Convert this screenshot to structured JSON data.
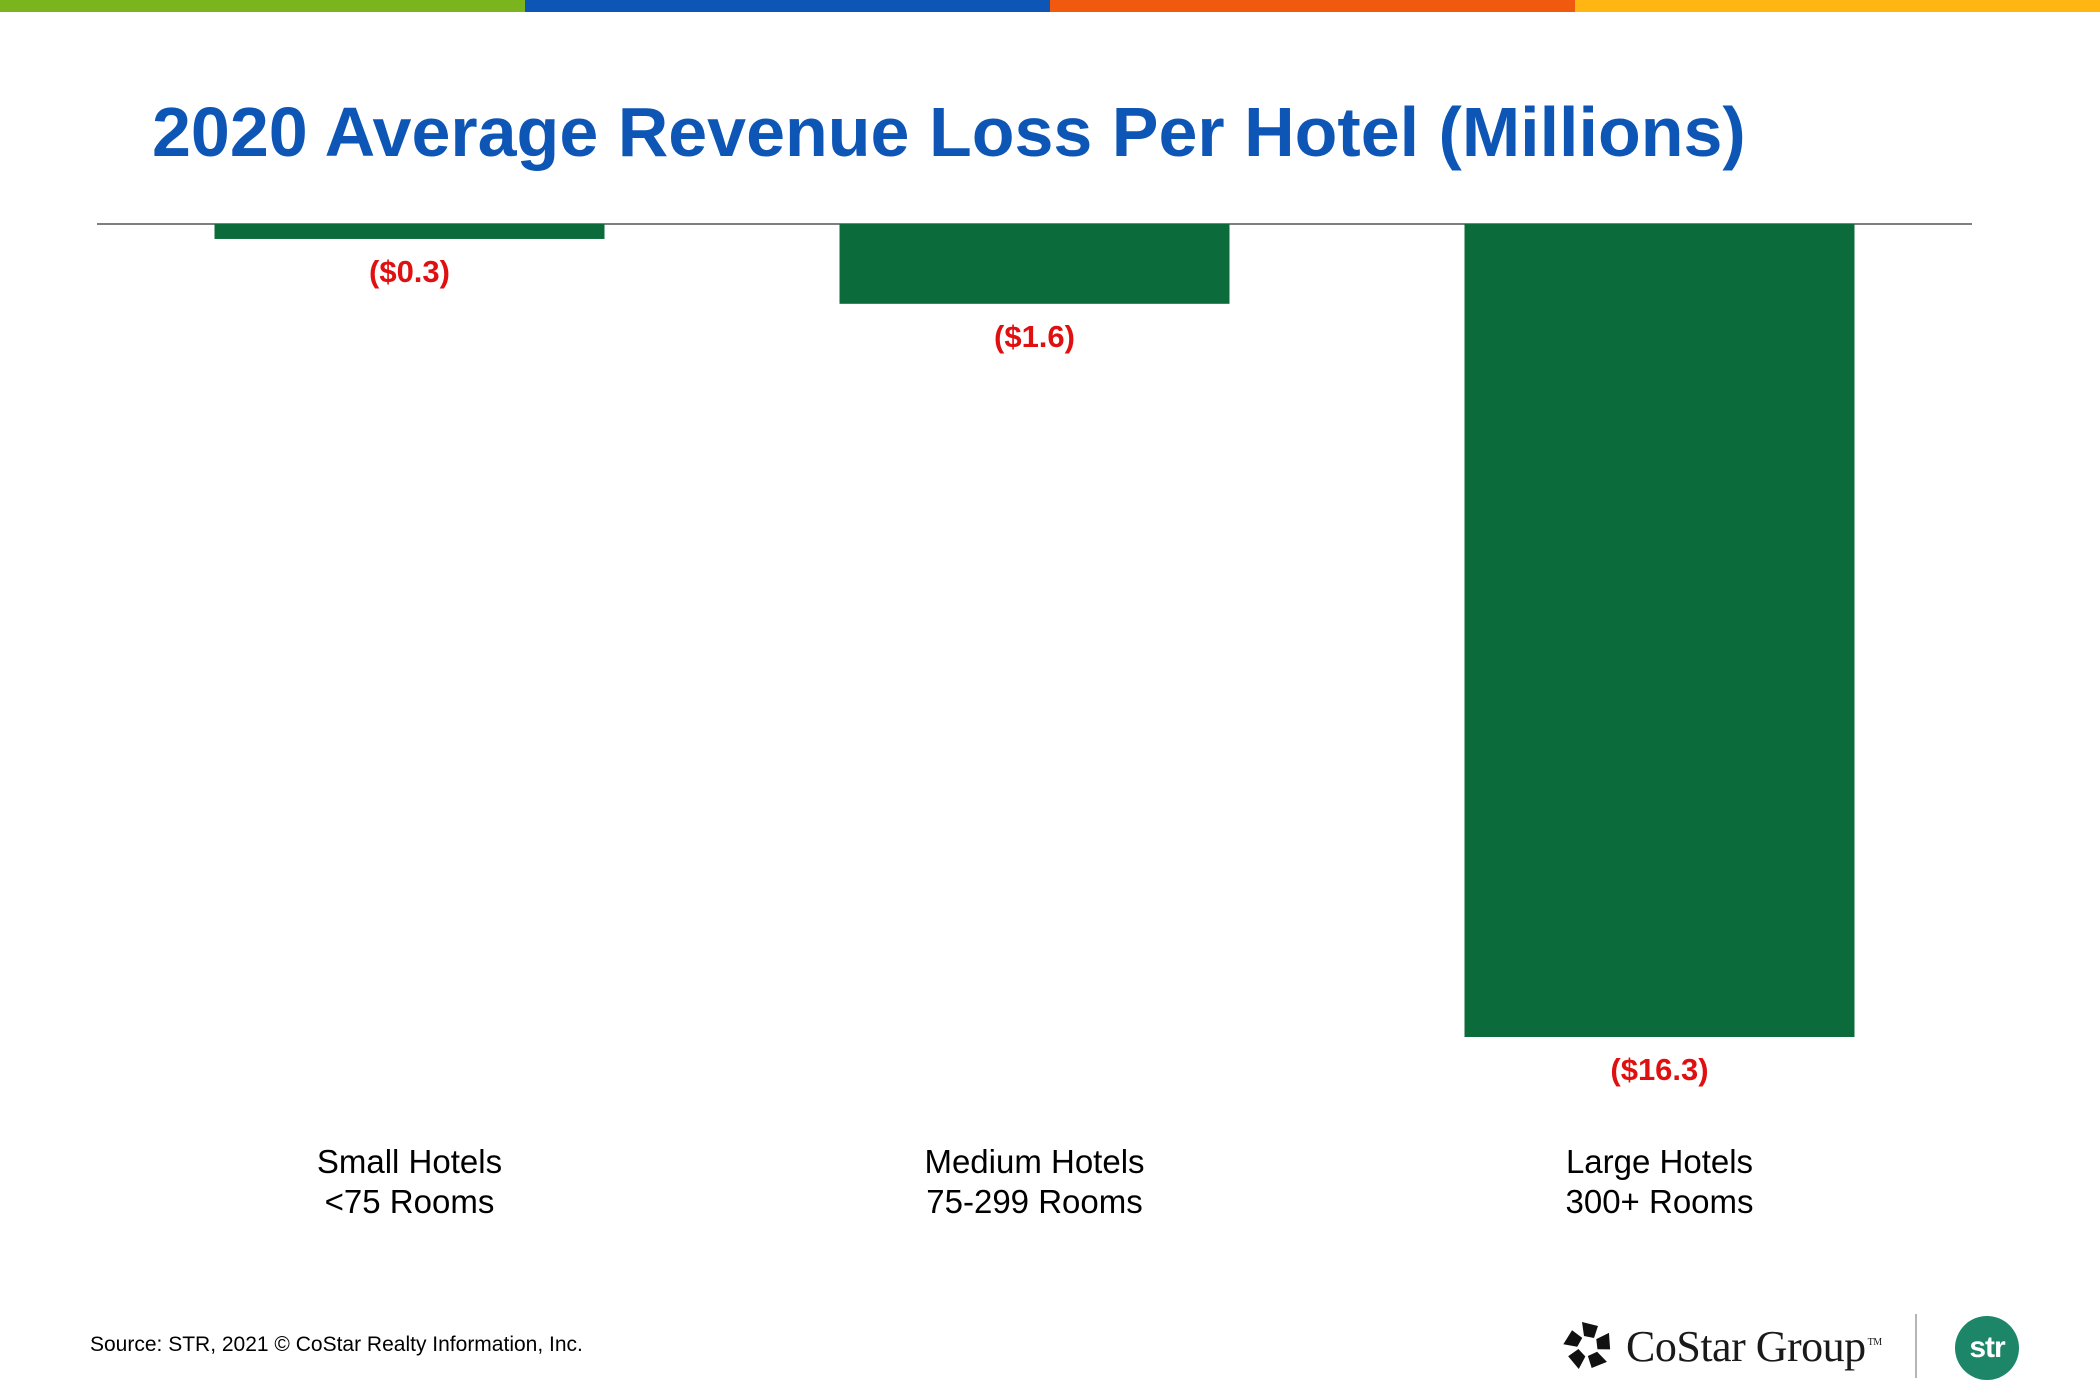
{
  "colors": {
    "stripe": [
      "#7ab51d",
      "#0e56b5",
      "#f15a0e",
      "#ffb613"
    ],
    "bar": "#0b6b3a",
    "label": "#e01010",
    "title": "#0e56b5"
  },
  "header": {
    "title": "2020 Average Revenue Loss Per Hotel (Millions)"
  },
  "chart_data": {
    "type": "bar",
    "title": "2020 Average Revenue Loss Per Hotel (Millions)",
    "categories": [
      [
        "Small Hotels",
        "<75 Rooms"
      ],
      [
        "Medium Hotels",
        "75-299 Rooms"
      ],
      [
        "Large Hotels",
        "300+ Rooms"
      ]
    ],
    "values": [
      -0.3,
      -1.6,
      -16.3
    ],
    "data_labels": [
      "($0.3)",
      "($1.6)",
      "($16.3)"
    ],
    "units": "Millions USD",
    "xlabel": "",
    "ylabel": "",
    "ylim": [
      -16.3,
      0
    ],
    "grid": false,
    "legend": "none"
  },
  "footer": {
    "source": "Source: STR, 2021 © CoStar Realty Information, Inc.",
    "costar_logo": "CoStar Group",
    "costar_tm": "TM",
    "str_logo": "str",
    "costar_icon": "costar-star-icon"
  }
}
